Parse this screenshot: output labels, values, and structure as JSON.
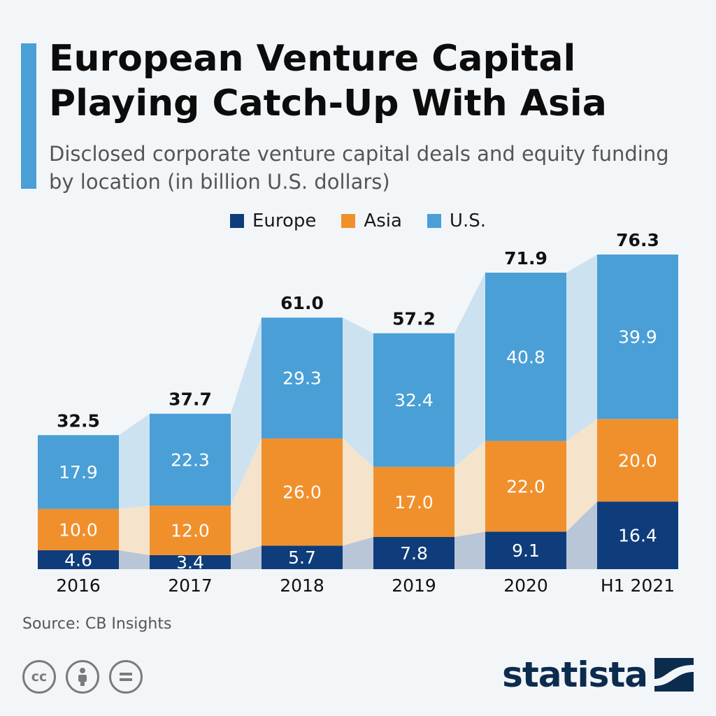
{
  "header": {
    "title": "European Venture Capital Playing Catch-Up With Asia",
    "subtitle": "Disclosed corporate venture capital deals and equity funding by location (in billion U.S. dollars)"
  },
  "legend": {
    "europe": "Europe",
    "asia": "Asia",
    "us": "U.S."
  },
  "colors": {
    "europe": "#0f3c7a",
    "asia": "#f0902c",
    "us": "#4a9fd6",
    "europe_band": "#b9c6d8",
    "asia_band": "#f6e3cb",
    "us_band": "#cce2f1",
    "accent": "#4a9fd6",
    "brand": "#0c2c4e"
  },
  "footer": {
    "source": "Source: CB Insights",
    "brand": "statista",
    "cc_icons": [
      "cc-icon",
      "by-person-icon",
      "nd-equals-icon"
    ]
  },
  "chart_data": {
    "type": "bar",
    "stacked": true,
    "categories": [
      "2016",
      "2017",
      "2018",
      "2019",
      "2020",
      "H1 2021"
    ],
    "series": [
      {
        "name": "Europe",
        "values": [
          4.6,
          3.4,
          5.7,
          7.8,
          9.1,
          16.4
        ]
      },
      {
        "name": "Asia",
        "values": [
          10.0,
          12.0,
          26.0,
          17.0,
          22.0,
          20.0
        ]
      },
      {
        "name": "U.S.",
        "values": [
          17.9,
          22.3,
          29.3,
          32.4,
          40.8,
          39.9
        ]
      }
    ],
    "totals": [
      "32.5",
      "37.7",
      "61.0",
      "57.2",
      "71.9",
      "76.3"
    ],
    "segment_labels": {
      "Europe": [
        "4.6",
        "3.4",
        "5.7",
        "7.8",
        "9.1",
        "16.4"
      ],
      "Asia": [
        "10.0",
        "12.0",
        "26.0",
        "17.0",
        "22.0",
        "20.0"
      ],
      "U.S.": [
        "17.9",
        "22.3",
        "29.3",
        "32.4",
        "40.8",
        "39.9"
      ]
    },
    "ylim": [
      0,
      76.3
    ],
    "grid": false,
    "legend_position": "top-center",
    "xlabel": "",
    "ylabel": ""
  }
}
